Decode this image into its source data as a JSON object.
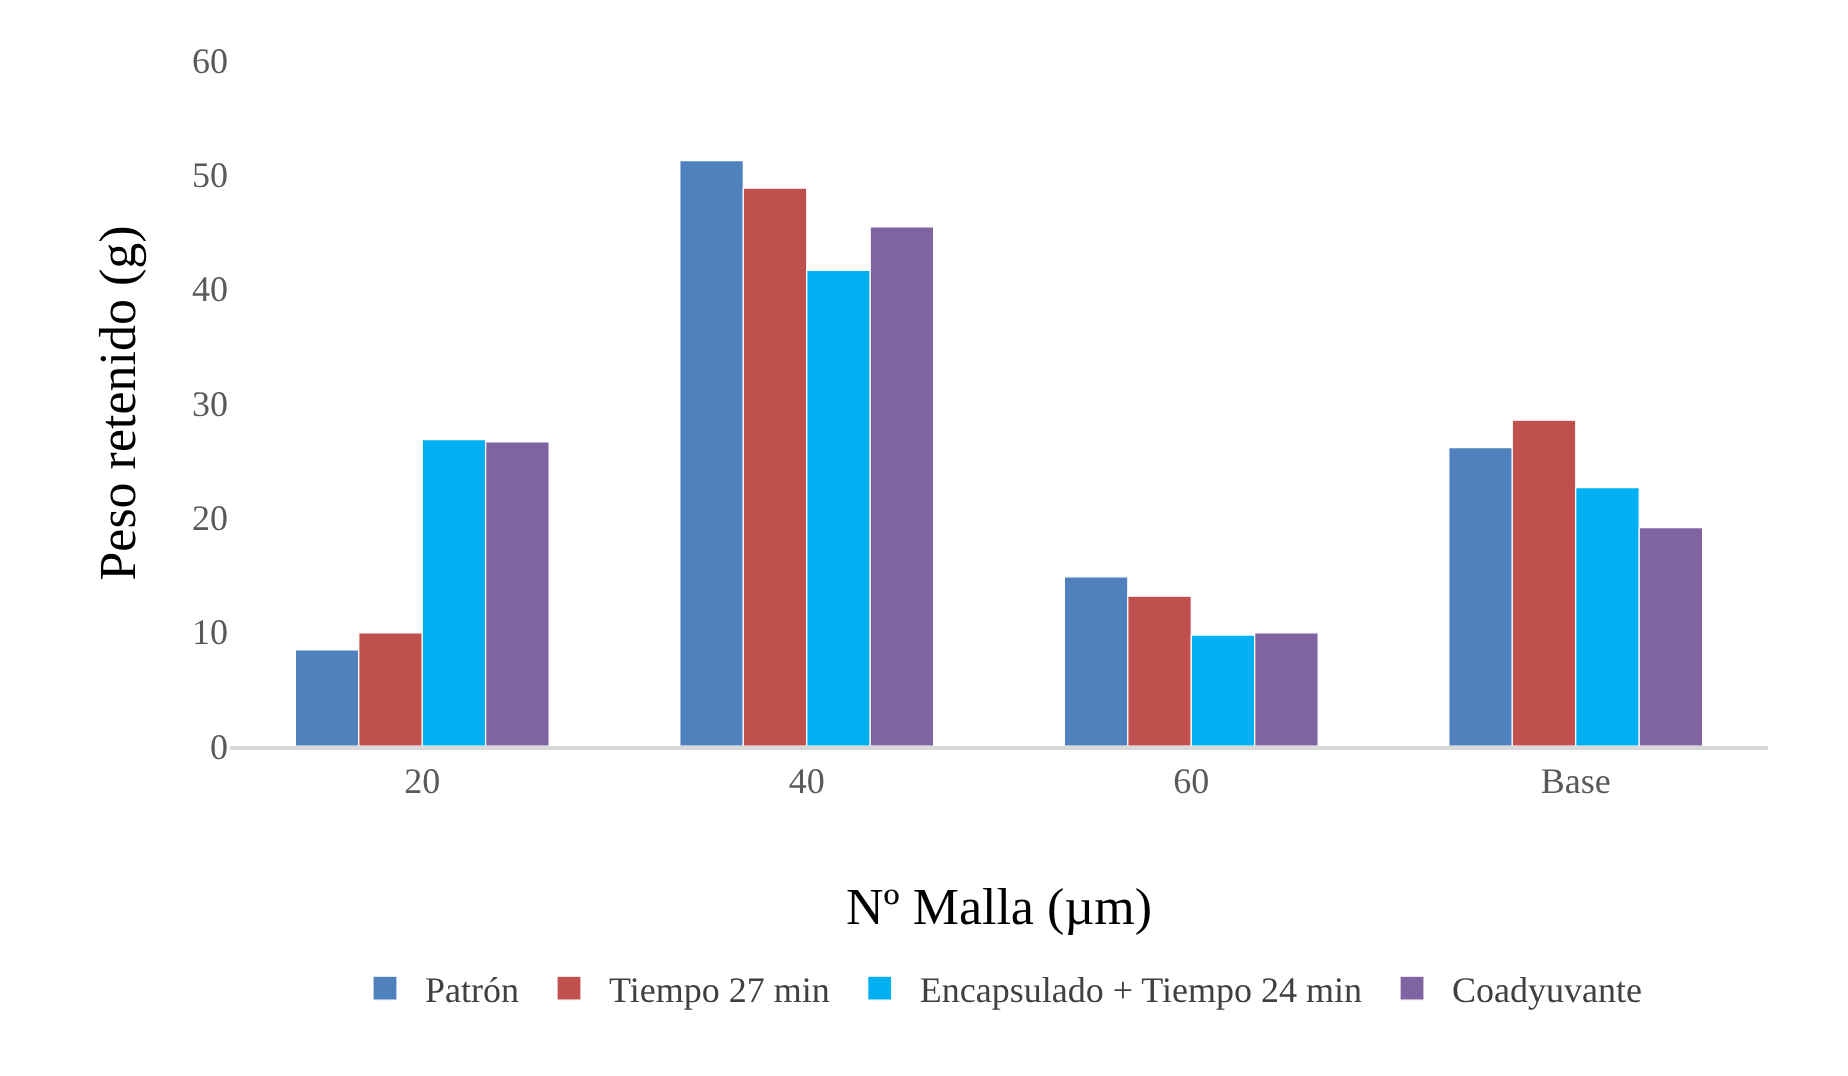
{
  "chart_data": {
    "type": "bar",
    "xlabel": "Nº Malla (µm)",
    "ylabel": "Peso retenido (g)",
    "categories": [
      "20",
      "40",
      "60",
      "Base"
    ],
    "ylim": [
      0,
      60
    ],
    "yticks": [
      0,
      10,
      20,
      30,
      40,
      50,
      60
    ],
    "grid": false,
    "legend": "bottom",
    "series": [
      {
        "name": "Patrón",
        "color": "#4f81bd",
        "values": [
          8.4,
          51.2,
          14.8,
          26.1
        ]
      },
      {
        "name": "Tiempo 27 min",
        "color": "#c0504d",
        "values": [
          9.9,
          48.8,
          13.1,
          28.5
        ]
      },
      {
        "name": "Encapsulado + Tiempo 24 min",
        "color": "#00b0f0",
        "values": [
          26.8,
          41.6,
          9.7,
          22.6
        ]
      },
      {
        "name": "Coadyuvante",
        "color": "#8064a2",
        "values": [
          26.6,
          45.4,
          9.9,
          19.1
        ]
      }
    ]
  }
}
